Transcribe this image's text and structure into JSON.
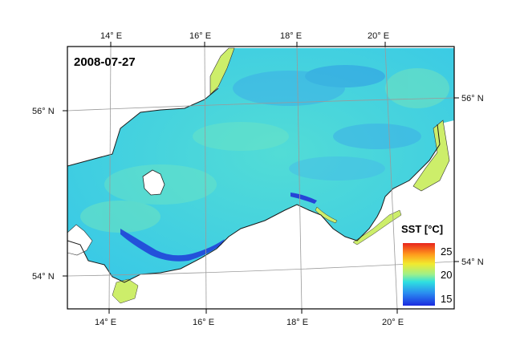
{
  "map": {
    "date": "2008-07-27",
    "top_lon_labels": [
      "14° E",
      "16° E",
      "18° E",
      "20° E"
    ],
    "bottom_lon_labels": [
      "14° E",
      "16° E",
      "18° E",
      "20° E"
    ],
    "left_lat_labels": [
      "56° N",
      "54° N"
    ],
    "right_lat_labels": [
      "56° N",
      "54° N"
    ],
    "colors": {
      "sea_base": "#3fd2e2",
      "sea_light": "#6ee6c8",
      "cold": "#1a2fd6",
      "land_green": "#d6f070",
      "grid": "#9a9a9a",
      "frame": "#000000"
    }
  },
  "legend": {
    "title": "SST [°C]",
    "ticks": [
      "25",
      "20",
      "15"
    ],
    "colors": [
      "#e8231c",
      "#ff9a1c",
      "#f2ea2e",
      "#9ef08a",
      "#2ee0e0",
      "#2a8cf0",
      "#1b2ae0"
    ]
  }
}
